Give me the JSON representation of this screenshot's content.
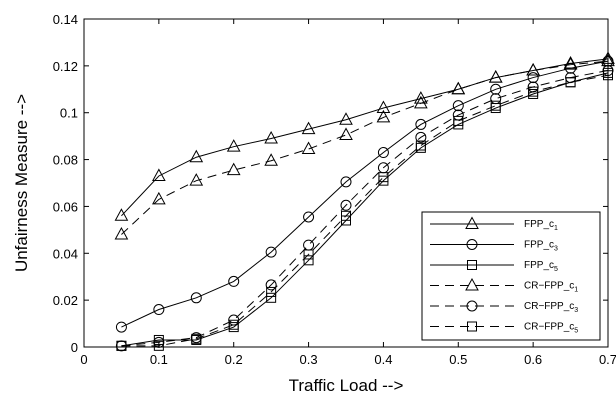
{
  "chart_data": {
    "type": "line",
    "title": "",
    "xlabel": "Traffic Load -->",
    "ylabel": "Unfairness Measure -->",
    "xlim": [
      0,
      0.7
    ],
    "ylim": [
      0,
      0.14
    ],
    "grid": false,
    "legend_position": "bottom-right",
    "xticks": [
      {
        "value": 0,
        "label": "0"
      },
      {
        "value": 0.1,
        "label": "0.1"
      },
      {
        "value": 0.2,
        "label": "0.2"
      },
      {
        "value": 0.3,
        "label": "0.3"
      },
      {
        "value": 0.4,
        "label": "0.4"
      },
      {
        "value": 0.5,
        "label": "0.5"
      },
      {
        "value": 0.6,
        "label": "0.6"
      },
      {
        "value": 0.7,
        "label": "0.7"
      }
    ],
    "yticks": [
      {
        "value": 0,
        "label": "0"
      },
      {
        "value": 0.02,
        "label": "0.02"
      },
      {
        "value": 0.04,
        "label": "0.04"
      },
      {
        "value": 0.06,
        "label": "0.06"
      },
      {
        "value": 0.08,
        "label": "0.08"
      },
      {
        "value": 0.1,
        "label": "0.1"
      },
      {
        "value": 0.12,
        "label": "0.12"
      },
      {
        "value": 0.14,
        "label": "0.14"
      }
    ],
    "x": [
      0.05,
      0.1,
      0.15,
      0.2,
      0.25,
      0.3,
      0.35,
      0.4,
      0.45,
      0.5,
      0.55,
      0.6,
      0.65,
      0.7
    ],
    "series": [
      {
        "name": "FPP_c",
        "sub": "1",
        "marker": "triangle",
        "dash": "solid",
        "values": [
          0.056,
          0.073,
          0.081,
          0.0855,
          0.089,
          0.093,
          0.097,
          0.102,
          0.106,
          0.11,
          0.115,
          0.118,
          0.121,
          0.123
        ]
      },
      {
        "name": "FPP_c",
        "sub": "3",
        "marker": "circle",
        "dash": "solid",
        "values": [
          0.0085,
          0.016,
          0.021,
          0.028,
          0.0405,
          0.0555,
          0.0705,
          0.083,
          0.095,
          0.103,
          0.11,
          0.115,
          0.119,
          0.122
        ]
      },
      {
        "name": "FPP_c",
        "sub": "5",
        "marker": "square",
        "dash": "solid",
        "values": [
          0.0005,
          0.003,
          0.003,
          0.0085,
          0.021,
          0.037,
          0.054,
          0.071,
          0.085,
          0.095,
          0.102,
          0.108,
          0.113,
          0.117
        ]
      },
      {
        "name": "CR−FPP_c",
        "sub": "1",
        "marker": "triangle",
        "dash": "dashed",
        "values": [
          0.048,
          0.063,
          0.071,
          0.0755,
          0.0795,
          0.0845,
          0.0905,
          0.098,
          0.104,
          0.11,
          0.115,
          0.118,
          0.1205,
          0.122
        ]
      },
      {
        "name": "CR−FPP_c",
        "sub": "3",
        "marker": "circle",
        "dash": "dashed",
        "values": [
          0.0005,
          0.002,
          0.004,
          0.0115,
          0.0265,
          0.0435,
          0.0605,
          0.0765,
          0.0895,
          0.099,
          0.106,
          0.111,
          0.115,
          0.118
        ]
      },
      {
        "name": "CR−FPP_c",
        "sub": "5",
        "marker": "square",
        "dash": "dashed",
        "values": [
          0.0005,
          0.0005,
          0.0035,
          0.0095,
          0.0235,
          0.0395,
          0.056,
          0.0725,
          0.086,
          0.0965,
          0.103,
          0.109,
          0.113,
          0.116
        ]
      }
    ]
  }
}
